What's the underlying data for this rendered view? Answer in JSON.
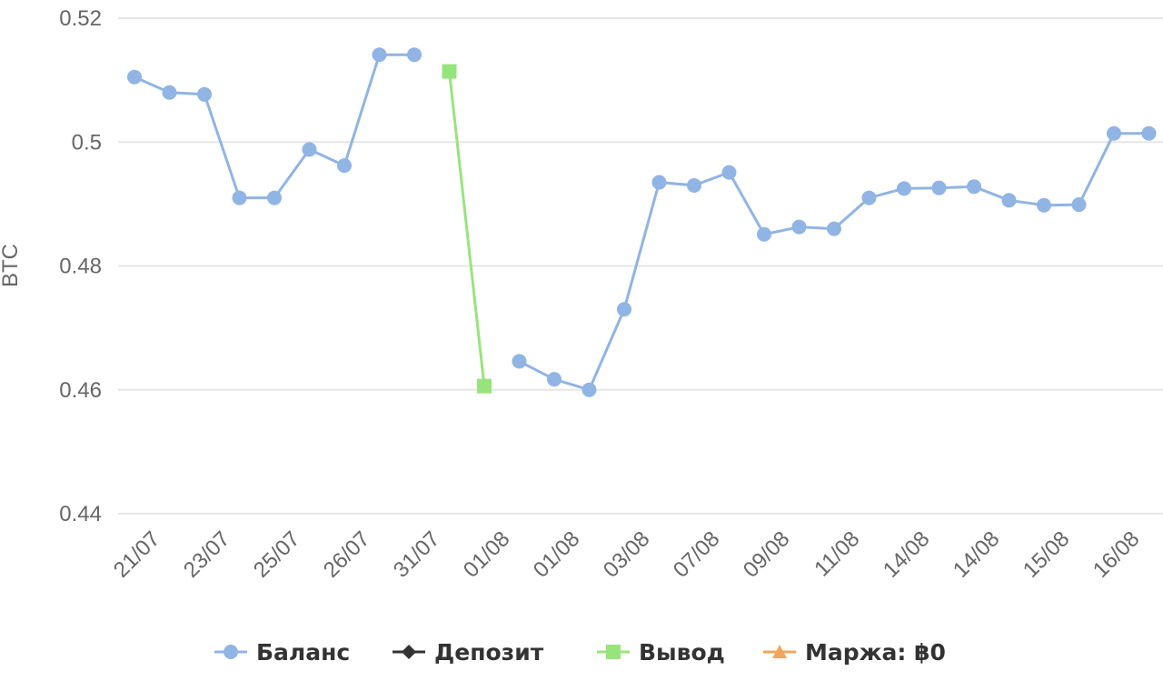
{
  "chart_data": {
    "type": "line",
    "ylabel": "BTC",
    "ylim": [
      0.44,
      0.52
    ],
    "yticks": [
      "0.44",
      "0.46",
      "0.48",
      "0.5",
      "0.52"
    ],
    "grid": true,
    "legend_position": "bottom",
    "tick_labels": [
      "21/07",
      "23/07",
      "25/07",
      "26/07",
      "31/07",
      "01/08",
      "01/08",
      "03/08",
      "07/08",
      "09/08",
      "11/08",
      "14/08",
      "14/08",
      "15/08",
      "16/08"
    ],
    "series": [
      {
        "name": "Баланс",
        "color": "#90b4e4",
        "marker": "circle",
        "values": [
          0.5105,
          0.508,
          0.5077,
          0.491,
          0.491,
          0.4988,
          0.4962,
          0.5141,
          0.5141,
          null,
          null,
          0.4646,
          0.4617,
          0.46,
          0.473,
          0.4935,
          0.493,
          0.4951,
          0.4851,
          0.4863,
          0.486,
          0.491,
          0.4925,
          0.4926,
          0.4928,
          0.4906,
          0.4898,
          0.4899,
          0.5014,
          0.5014
        ]
      },
      {
        "name": "Депозит",
        "color": "#333333",
        "marker": "diamond",
        "values": []
      },
      {
        "name": "Вывод",
        "color": "#98e47c",
        "marker": "square",
        "values": [
          null,
          null,
          null,
          null,
          null,
          null,
          null,
          null,
          null,
          0.5114,
          0.4606,
          null,
          null,
          null,
          null,
          null,
          null,
          null,
          null,
          null,
          null,
          null,
          null,
          null,
          null,
          null,
          null,
          null,
          null,
          null
        ]
      },
      {
        "name": "Маржа: ฿0",
        "color": "#f1a65c",
        "marker": "triangle",
        "values": []
      }
    ]
  }
}
